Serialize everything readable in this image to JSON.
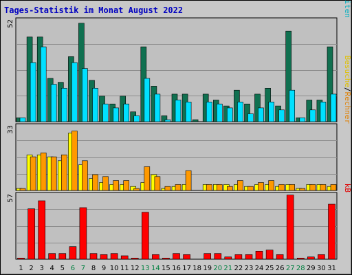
{
  "title": "Tages-Statistik im Monat August 2022",
  "colors": {
    "frame_bg": "#c8c8c8",
    "plot_bg": "#c0c0c0",
    "grid": "#8c8c8c",
    "title": "#0000c0",
    "weekday": "#000000",
    "weekend": "#008040"
  },
  "right_labels": {
    "top": [
      {
        "text": "Anfragen",
        "color": "#008040"
      },
      {
        "text": "/",
        "color": "#000000"
      },
      {
        "text": "Dateien",
        "color": "#0060c0"
      },
      {
        "text": "/",
        "color": "#000000"
      },
      {
        "text": "Seiten",
        "color": "#00b0c0"
      }
    ],
    "middle": [
      {
        "text": "Besuche",
        "color": "#e0c000"
      },
      {
        "text": "/",
        "color": "#000000"
      },
      {
        "text": "Rechner",
        "color": "#e08000"
      }
    ],
    "bottom": [
      {
        "text": "kB",
        "color": "#e00000"
      }
    ]
  },
  "chart_data": [
    {
      "type": "bar",
      "panel": "top",
      "ymax_label": "52",
      "ylim": [
        0,
        52
      ],
      "categories": [
        "1",
        "2",
        "3",
        "4",
        "5",
        "6",
        "7",
        "8",
        "9",
        "10",
        "11",
        "12",
        "13",
        "14",
        "15",
        "16",
        "17",
        "18",
        "19",
        "20",
        "21",
        "22",
        "23",
        "24",
        "25",
        "26",
        "27",
        "28",
        "29",
        "30",
        "31"
      ],
      "series": [
        {
          "name": "Anfragen",
          "color": "#107050",
          "values": [
            2,
            43,
            43,
            22,
            20,
            33,
            50,
            21,
            13,
            9,
            13,
            5,
            38,
            18,
            3,
            14,
            14,
            1,
            14,
            11,
            8,
            16,
            9,
            14,
            17,
            8,
            46,
            2,
            11,
            11,
            38
          ]
        },
        {
          "name": "Seiten",
          "color": "#00e0ff",
          "values": [
            2,
            30,
            38,
            19,
            17,
            30,
            27,
            17,
            9,
            7,
            9,
            3,
            22,
            14,
            1,
            11,
            10,
            0,
            10,
            9,
            7,
            10,
            4,
            7,
            10,
            6,
            16,
            2,
            6,
            10,
            14
          ]
        }
      ]
    },
    {
      "type": "bar",
      "panel": "middle",
      "ymax_label": "33",
      "ylim": [
        0,
        33
      ],
      "categories": [
        "1",
        "2",
        "3",
        "4",
        "5",
        "6",
        "7",
        "8",
        "9",
        "10",
        "11",
        "12",
        "13",
        "14",
        "15",
        "16",
        "17",
        "18",
        "19",
        "20",
        "21",
        "22",
        "23",
        "24",
        "25",
        "26",
        "27",
        "28",
        "29",
        "30",
        "31"
      ],
      "series": [
        {
          "name": "Besuche",
          "color": "#ffff00",
          "values": [
            1,
            18,
            18,
            17,
            15,
            29,
            13,
            6,
            4,
            3,
            3,
            2,
            4,
            8,
            1,
            2,
            3,
            0,
            3,
            3,
            3,
            3,
            2,
            3,
            3,
            2,
            3,
            1,
            3,
            3,
            2
          ]
        },
        {
          "name": "Rechner",
          "color": "#ff9900",
          "values": [
            1,
            17,
            19,
            17,
            18,
            30,
            15,
            8,
            7,
            5,
            5,
            1,
            12,
            7,
            2,
            3,
            10,
            0,
            3,
            3,
            2,
            5,
            2,
            4,
            5,
            3,
            3,
            1,
            3,
            3,
            3
          ]
        }
      ]
    },
    {
      "type": "bar",
      "panel": "bottom",
      "ymax_label": "57",
      "ylim": [
        0,
        57
      ],
      "categories": [
        "1",
        "2",
        "3",
        "4",
        "5",
        "6",
        "7",
        "8",
        "9",
        "10",
        "11",
        "12",
        "13",
        "14",
        "15",
        "16",
        "17",
        "18",
        "19",
        "20",
        "21",
        "22",
        "23",
        "24",
        "25",
        "26",
        "27",
        "28",
        "29",
        "30",
        "31"
      ],
      "series": [
        {
          "name": "kB",
          "color": "#ff0000",
          "values": [
            1,
            44,
            51,
            5,
            5,
            11,
            45,
            5,
            4,
            5,
            3,
            1,
            41,
            4,
            1,
            5,
            4,
            0,
            5,
            5,
            2,
            4,
            4,
            7,
            8,
            4,
            56,
            1,
            2,
            4,
            48
          ]
        }
      ]
    }
  ],
  "x_labels": [
    {
      "text": "1",
      "weekend": false
    },
    {
      "text": "2",
      "weekend": false
    },
    {
      "text": "3",
      "weekend": false
    },
    {
      "text": "4",
      "weekend": false
    },
    {
      "text": "5",
      "weekend": false
    },
    {
      "text": "6",
      "weekend": true
    },
    {
      "text": "7",
      "weekend": true
    },
    {
      "text": "8",
      "weekend": false
    },
    {
      "text": "9",
      "weekend": false
    },
    {
      "text": "10",
      "weekend": false
    },
    {
      "text": "11",
      "weekend": false
    },
    {
      "text": "12",
      "weekend": false
    },
    {
      "text": "13",
      "weekend": true
    },
    {
      "text": "14",
      "weekend": true
    },
    {
      "text": "15",
      "weekend": false
    },
    {
      "text": "16",
      "weekend": false
    },
    {
      "text": "17",
      "weekend": false
    },
    {
      "text": "18",
      "weekend": false
    },
    {
      "text": "19",
      "weekend": false
    },
    {
      "text": "20",
      "weekend": true
    },
    {
      "text": "21",
      "weekend": true
    },
    {
      "text": "22",
      "weekend": false
    },
    {
      "text": "23",
      "weekend": false
    },
    {
      "text": "24",
      "weekend": false
    },
    {
      "text": "25",
      "weekend": false
    },
    {
      "text": "26",
      "weekend": false
    },
    {
      "text": "27",
      "weekend": true
    },
    {
      "text": "28",
      "weekend": true
    },
    {
      "text": "29",
      "weekend": false
    },
    {
      "text": "30",
      "weekend": false
    },
    {
      "text": "31",
      "weekend": false
    }
  ]
}
